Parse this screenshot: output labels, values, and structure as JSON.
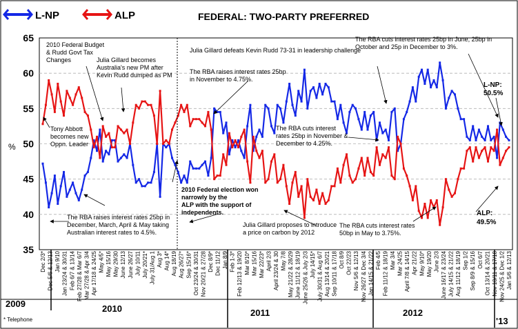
{
  "chart_data": {
    "type": "line",
    "title": "FEDERAL: TWO-PARTY PREFERRED",
    "ylabel": "%",
    "ylim": [
      35,
      65
    ],
    "yticks": [
      35,
      40,
      45,
      50,
      55,
      60,
      65
    ],
    "legend": [
      {
        "name": "L-NP",
        "color": "#1428e6"
      },
      {
        "name": "ALP",
        "color": "#e61414"
      }
    ],
    "series": [
      {
        "name": "L-NP",
        "color": "#1428e6",
        "values": [
          47.2,
          44.5,
          41.0,
          43.0,
          45.5,
          41.5,
          44.0,
          46.0,
          42.5,
          43.5,
          44.5,
          43.0,
          42.0,
          43.5,
          45.5,
          46.0,
          48.0,
          50.5,
          49.0,
          52.0,
          47.5,
          49.0,
          48.5,
          50.5,
          50.5,
          47.5,
          48.0,
          48.5,
          48.0,
          50.0,
          47.0,
          44.5,
          45.0,
          44.0,
          44.0,
          44.5,
          44.5,
          46.0,
          50.0,
          42.5,
          50.0,
          49.5,
          50.0,
          48.0,
          47.0,
          46.0,
          44.5,
          45.5,
          44.5,
          47.5,
          46.5,
          46.5,
          46.5,
          47.0,
          47.5,
          45.5,
          48.0,
          55.0,
          54.5,
          54.5,
          51.5,
          53.0,
          48.5,
          50.5,
          49.5,
          50.5,
          49.0,
          48.0,
          52.5,
          55.5,
          49.0,
          51.0,
          52.0,
          51.0,
          55.5,
          55.0,
          52.5,
          51.5,
          55.5,
          55.0,
          53.0,
          56.0,
          58.5,
          55.5,
          54.0,
          57.5,
          56.0,
          60.5,
          55.0,
          57.5,
          58.0,
          56.5,
          58.5,
          57.0,
          58.5,
          58.0,
          56.0,
          56.0,
          53.5,
          55.5,
          53.0,
          51.5,
          54.5,
          55.5,
          55.0,
          53.5,
          52.0,
          54.5,
          52.0,
          54.0,
          54.5,
          50.5,
          53.0,
          51.5,
          52.0,
          50.5,
          54.5,
          55.0,
          49.0,
          50.0,
          53.5,
          54.5,
          56.0,
          58.0,
          56.0,
          59.5,
          60.5,
          58.5,
          60.5,
          58.0,
          59.0,
          58.0,
          61.5,
          59.0,
          55.0,
          56.5,
          57.5,
          57.0,
          55.0,
          53.5,
          53.5,
          51.0,
          50.5,
          52.5,
          50.5,
          52.0,
          51.0,
          50.5,
          52.5,
          50.5,
          51.0,
          48.0,
          53.0,
          52.0,
          51.0,
          50.5
        ]
      },
      {
        "name": "ALP",
        "color": "#e61414",
        "values": [
          52.8,
          55.5,
          59.0,
          57.0,
          54.5,
          58.5,
          56.0,
          54.0,
          57.5,
          56.5,
          55.5,
          57.0,
          58.0,
          56.5,
          54.5,
          54.0,
          52.0,
          49.5,
          51.0,
          48.0,
          52.5,
          51.0,
          51.5,
          49.5,
          49.5,
          52.5,
          52.0,
          51.5,
          52.0,
          50.0,
          53.0,
          55.5,
          55.0,
          56.0,
          56.0,
          55.5,
          55.5,
          54.0,
          50.0,
          57.5,
          50.0,
          50.5,
          50.0,
          52.0,
          53.0,
          54.0,
          55.5,
          54.5,
          55.5,
          52.5,
          53.5,
          53.5,
          53.5,
          53.0,
          52.5,
          54.5,
          52.0,
          45.0,
          45.5,
          45.5,
          48.5,
          47.0,
          51.5,
          49.5,
          50.5,
          49.5,
          51.0,
          52.0,
          47.5,
          44.5,
          51.0,
          49.0,
          48.0,
          49.0,
          44.5,
          45.0,
          47.5,
          48.5,
          44.5,
          45.0,
          47.0,
          44.0,
          41.5,
          44.5,
          46.0,
          42.5,
          44.0,
          39.5,
          45.0,
          42.5,
          42.0,
          43.5,
          41.5,
          43.0,
          41.5,
          42.0,
          44.0,
          44.0,
          46.5,
          44.5,
          47.0,
          48.5,
          45.5,
          44.5,
          45.0,
          46.5,
          48.0,
          45.5,
          48.0,
          46.0,
          45.5,
          49.5,
          47.0,
          48.5,
          48.0,
          49.5,
          45.5,
          45.0,
          51.0,
          50.0,
          46.5,
          45.5,
          44.0,
          42.0,
          44.0,
          40.5,
          39.5,
          41.5,
          39.5,
          42.0,
          41.0,
          42.0,
          38.5,
          41.0,
          45.0,
          43.5,
          42.5,
          43.0,
          45.0,
          46.5,
          46.5,
          49.0,
          49.5,
          47.5,
          49.5,
          48.0,
          49.0,
          49.5,
          47.5,
          49.5,
          49.0,
          52.0,
          47.0,
          48.0,
          49.0,
          49.5
        ]
      }
    ],
    "x_labels": [
      "Dec 2/3*",
      "Dec 5/6 & 12/13",
      "Jan 9/10",
      "Jan 23/24 & 30/31",
      "Feb 6/7 & 13/14",
      "Feb 27/28 & Mar 6/7",
      "Mar 27/28 & Apr 3/4",
      "Apr 17/18 & 24/25",
      "May 4/5*",
      "May 15/16",
      "May 29/30",
      "June 12/13",
      "June 26/27",
      "July 10/11",
      "July 20/21*",
      "July 31/Aug 1",
      "Aug 3*",
      "Aug 14*",
      "Aug 18/19",
      "Aug 26/27*",
      "Sep 15/16*",
      "Oct 23/24 & 30/31",
      "Nov 20/21 & 27/28",
      "Dec 8/9*",
      "Dec 11/12",
      "Jan 8/9",
      "Feb 1-3*",
      "Feb 12/13 & 19/20",
      "Mar 8/10*",
      "Mar 15/16",
      "Mar 22/23*",
      "April 2/3",
      "April 23/24 & 30",
      "May 7/8",
      "May 21/22 & 28/29",
      "June 11/12 & 18/19",
      "June 25/26 & July 2/3",
      "July 14/15*",
      "July 30/31 & Aug 6/7",
      "Aug 13/14 & 20/21",
      "Sep 10/11 & 17/18",
      "Oct 8/9",
      "Oct 22/23",
      "Nov 5/6 & 12/13",
      "Nov 26/27 & Dec 3/4",
      "Jan 14/15 & 21/22",
      "Feb 4/5",
      "Feb 11/12 & 18/19",
      "Mar 3/4",
      "Mar 24/25",
      "April 7/8 & 14/15",
      "Apr 21/22",
      "May 9/10*",
      "May 19/20",
      "June 2/3",
      "June 16/17 & 23/24",
      "July 14/15 & 21/22",
      "Aug 11/12 & 18/19",
      "Sep 1/2",
      "Sep 8/9 & 15/16",
      "Oct 6/7",
      "Oct 13/14 & 20/21",
      "Nov 10/11 & 17/18",
      "Nov 24/25 & Dec 1/2",
      "Jan 5/6 & 12/13"
    ],
    "x_labels_shown": [
      "Dec 2/3*",
      "Dec 5/6 & 12/13",
      "Jan 9/10",
      "Jan 23/24 & 30/31",
      "Feb 6/7 & 13/14",
      "Feb 27/28 & Mar 6/7",
      "Mar 27/28 & Apr 3/4",
      "Apr 17/18 & 24/25",
      "May 4/5*",
      "May 15/16",
      "May 29/30",
      "June 12/13",
      "June 26/27",
      "July 10/11",
      "July 20/21*",
      "July 31/Aug 1",
      "Aug 3*",
      "Aug 14*",
      "Aug 18/19",
      "Aug 26/27*",
      "Sep 15/16*",
      "Oct 23/24 & 30/31",
      "Nov 20/21 & 27/28",
      "Dec 8/9*",
      "Dec 11/12",
      "Jan 8/9",
      "Feb 1-3*",
      "Feb 12/13 & 19/20",
      "Mar 8/10*",
      "Mar 15/16",
      "Mar 22/23*",
      "April 2/3",
      "April 23/24 & 30",
      "May 7/8",
      "May 21/22 & 28/29",
      "June 11/12 & 18/19",
      "June 25/26 & July 2/3",
      "July 14/15*",
      "July 30/31 & Aug 6/7",
      "Aug 13/14 & 20/21",
      "Sep 10/11 & 17/18",
      "Oct 8/9",
      "Oct 22/23",
      "Nov 5/6 & 12/13",
      "Nov 26/27 & Dec 3/4",
      "Jan 14/15 & 21/22",
      "Feb 4/5",
      "Feb 11/12 & 18/19",
      "Mar 3/4",
      "Mar 24/25",
      "April 7/8 & 14/15",
      "Apr 21/22",
      "May 9/10*",
      "May 19/20",
      "June 2/3",
      "June 16/17 & 23/24",
      "July 14/15 & 21/22",
      "Aug 11/12 & 18/19",
      "Sep 1/2",
      "Sep 8/9 & 15/16",
      "Oct 6/7",
      "Oct 13/14 & 20/21",
      "Nov 10/11 & 17/18",
      "Nov 24/25 & Dec 1/2",
      "Jan 5/6 & 12/13"
    ],
    "years": [
      {
        "label": "2009"
      },
      {
        "label": "2010"
      },
      {
        "label": "2011"
      },
      {
        "label": "2012"
      },
      {
        "label": "'13"
      }
    ],
    "end_labels": {
      "lnp": [
        "L-NP:",
        "50.5%"
      ],
      "alp": [
        "ALP:",
        "49.5%"
      ]
    },
    "footnote": "* Telephone",
    "annotations": [
      {
        "key": "budget",
        "lines": [
          "2010 Federal Budget",
          "& Rudd Govt Tax",
          "Changes"
        ]
      },
      {
        "key": "gillard_pm",
        "lines": [
          "Julia Gillard becomes",
          "Australia's new PM after",
          "Kevin Rudd dumped as PM"
        ]
      },
      {
        "key": "abbott",
        "lines": [
          "Tony Abbott",
          "becomes new",
          "Oppn. Leader"
        ]
      },
      {
        "key": "rba_raise_4_5",
        "lines": [
          "The RBA raises interest rates 25bp in",
          "December, March, April & May taking",
          "Australian interest rates to 4.5%."
        ]
      },
      {
        "key": "election",
        "lines": [
          "2010 Federal election won",
          "narrowly by the",
          "ALP with the support of",
          "independents."
        ]
      },
      {
        "key": "defeats",
        "lines": [
          "Julia Gillard defeats Kevin Rudd 73-31 in leadership challenge"
        ]
      },
      {
        "key": "rba_raise_4_75",
        "lines": [
          "The RBA raises interest rates 25bp",
          "in November to 4.75%."
        ]
      },
      {
        "key": "rba_cut_4_25",
        "lines": [
          "The RBA cuts interest",
          "rates 25bp in November &",
          "December to 4.25%."
        ]
      },
      {
        "key": "carbon",
        "lines": [
          "Julia Gillard proposes to introduce",
          "a price on carbon by 2012"
        ]
      },
      {
        "key": "rba_cut_3_75",
        "lines": [
          "The RBA cuts interest rates",
          "50bp in May to 3.75%."
        ]
      },
      {
        "key": "rba_cut_3",
        "lines": [
          "The RBA cuts interest rates 25bp in June, 25bp in",
          "October and 25p in December to 3%."
        ]
      }
    ]
  }
}
